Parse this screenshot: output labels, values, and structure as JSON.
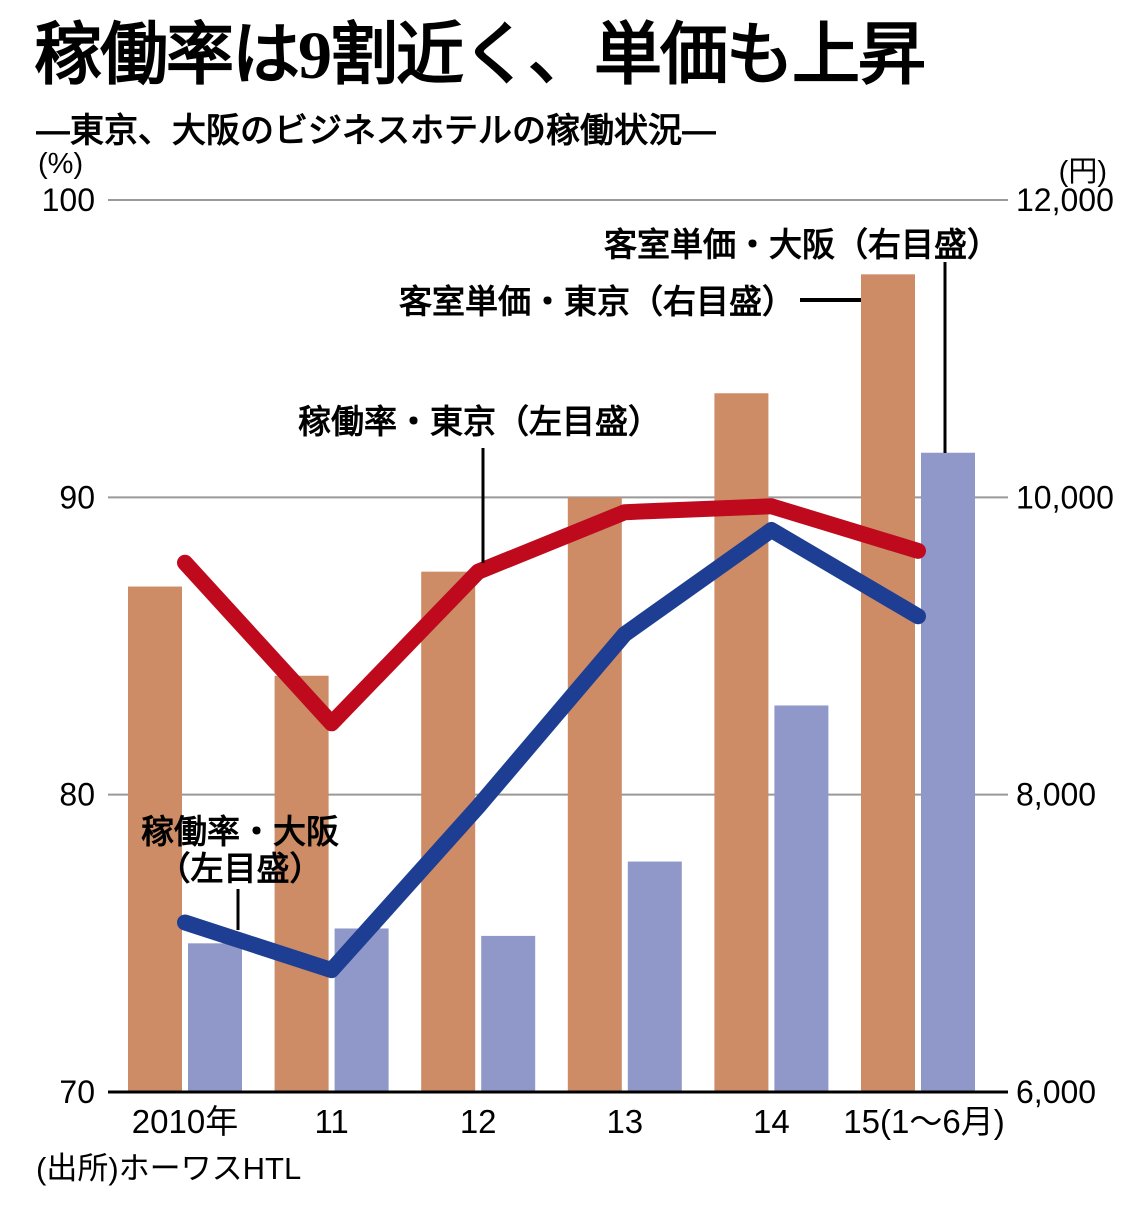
{
  "header": {
    "title": "稼働率は9割近く、単価も上昇",
    "subtitle": "―東京、大阪のビジネスホテルの稼働状況―",
    "left_axis_unit": "(%)",
    "right_axis_unit": "(円)",
    "source": "(出所)ホーワスHTL"
  },
  "annotations": {
    "price_osaka": "客室単価・大阪（右目盛）",
    "price_tokyo": "客室単価・東京（右目盛）",
    "occ_tokyo": "稼働率・東京（左目盛）",
    "occ_osaka_line1": "稼働率・大阪",
    "occ_osaka_line2": "（左目盛）"
  },
  "colors": {
    "tokyo_price_bar": "#cd8c66",
    "osaka_price_bar": "#9098c9",
    "tokyo_occupancy_line": "#bf0a1e",
    "osaka_occupancy_line": "#1e3e93",
    "gridline": "#999999",
    "axis": "#000000"
  },
  "chart_data": {
    "type": "bar",
    "subtype": "grouped bars with overlaid lines, dual axis",
    "title": "稼働率は9割近く、単価も上昇",
    "subtitle": "―東京、大阪のビジネスホテルの稼働状況―",
    "categories": [
      "2010年",
      "11",
      "12",
      "13",
      "14",
      "15(1～6月)"
    ],
    "left_axis": {
      "unit": "%",
      "range": [
        70,
        100
      ],
      "ticks": [
        "100",
        "90",
        "80",
        "70"
      ],
      "tick_values": [
        100,
        90,
        80,
        70
      ],
      "grid": true
    },
    "right_axis": {
      "unit": "円",
      "range": [
        6000,
        12000
      ],
      "ticks": [
        "12,000",
        "10,000",
        "8,000",
        "6,000"
      ],
      "tick_values": [
        12000,
        10000,
        8000,
        6000
      ]
    },
    "series": [
      {
        "name": "客室単価・東京（右目盛）",
        "type": "bar",
        "axis": "right",
        "color": "#cd8c66",
        "values": [
          9400,
          8800,
          9500,
          10000,
          10700,
          11500
        ]
      },
      {
        "name": "客室単価・大阪（右目盛）",
        "type": "bar",
        "axis": "right",
        "color": "#9098c9",
        "values": [
          7000,
          7100,
          7050,
          7550,
          8600,
          10300
        ]
      },
      {
        "name": "稼働率・東京（左目盛）",
        "type": "line",
        "axis": "left",
        "color": "#bf0a1e",
        "values": [
          87.8,
          82.4,
          87.5,
          89.5,
          89.7,
          88.2
        ]
      },
      {
        "name": "稼働率・大阪（左目盛）",
        "type": "line",
        "axis": "left",
        "color": "#1e3e93",
        "values": [
          75.7,
          74.1,
          79.6,
          85.4,
          88.9,
          86.0
        ]
      }
    ],
    "legend_position": "in-plot callout labels with pointer lines",
    "source": "(出所)ホーワスHTL"
  }
}
